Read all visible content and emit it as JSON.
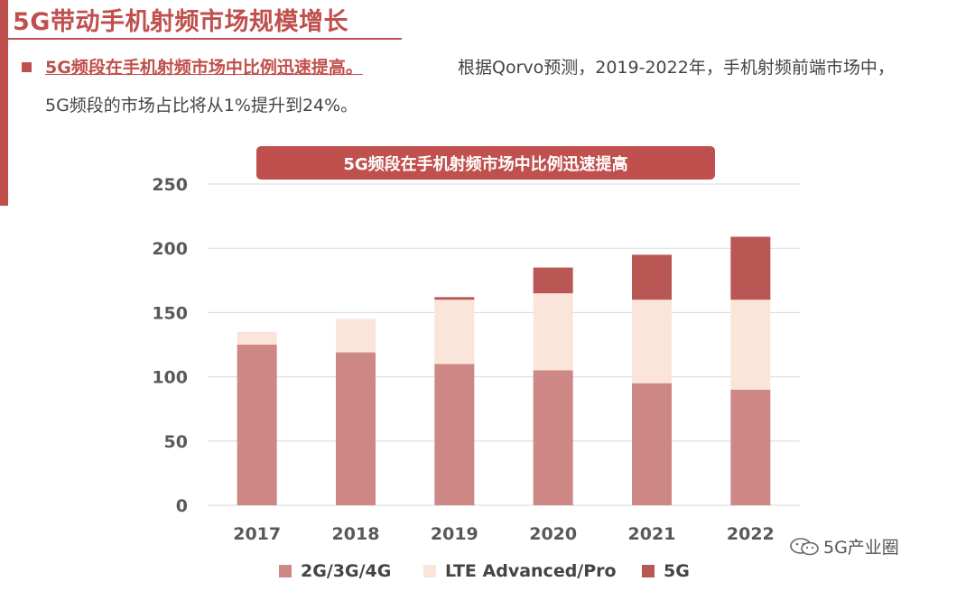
{
  "header": {
    "title": "5G带动手机射频市场规模增长"
  },
  "bullet": {
    "lead": "5G频段在手机射频市场中比例迅速提高。",
    "text": "根据Qorvo预测，2019-2022年，手机射频前端市场中，",
    "continuation": "5G频段的市场占比将从1%提升到24%。"
  },
  "chart_banner": "5G频段在手机射频市场中比例迅速提高",
  "badge": {
    "icon": "wechat-icon",
    "label": "5G产业圈"
  },
  "chart_data": {
    "type": "bar",
    "stacked": true,
    "categories": [
      "2017",
      "2018",
      "2019",
      "2020",
      "2021",
      "2022"
    ],
    "series": [
      {
        "name": "2G/3G/4G",
        "color": "#cd8785",
        "values": [
          125,
          119,
          110,
          105,
          95,
          90
        ]
      },
      {
        "name": "LTE Advanced/Pro",
        "color": "#fbe4d9",
        "values": [
          10,
          26,
          50,
          60,
          65,
          70
        ]
      },
      {
        "name": "5G",
        "color": "#b85753",
        "values": [
          0,
          0,
          2,
          20,
          35,
          49
        ]
      }
    ],
    "yticks": [
      "0",
      "50",
      "100",
      "150",
      "200",
      "250"
    ],
    "ylim": [
      0,
      250
    ],
    "grid": true,
    "legend": "bottom"
  }
}
